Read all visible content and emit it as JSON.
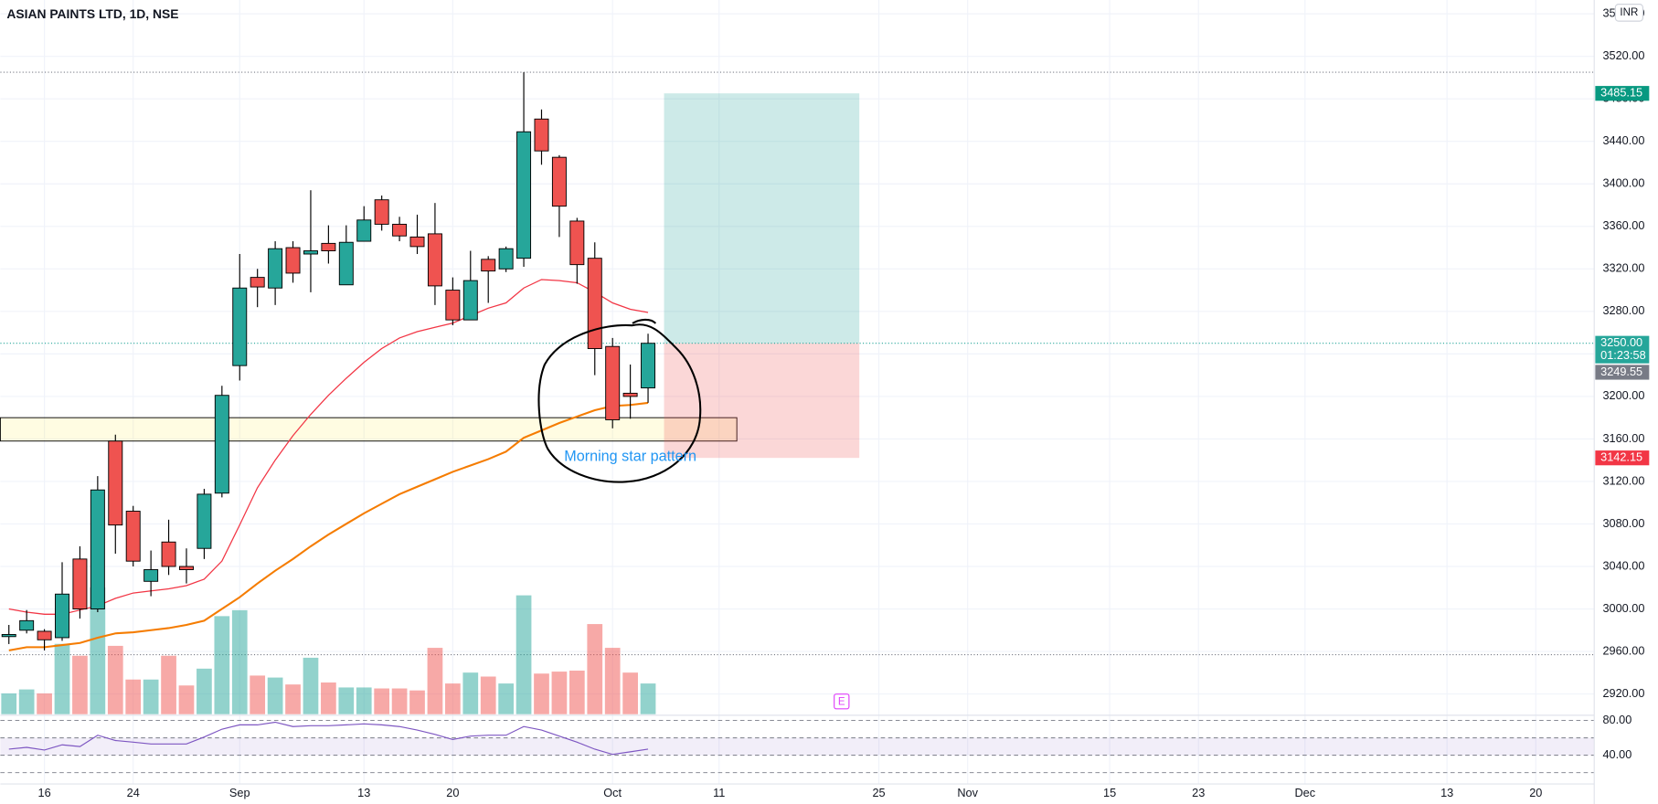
{
  "chart_data": {
    "type": "candlestick",
    "title": "ASIAN PAINTS LTD, 1D, NSE",
    "currency": "INR",
    "up_color": "#26a69a",
    "down_color": "#ef5350",
    "open": [
      2974,
      2980,
      2979,
      2973,
      3047,
      3000,
      3158,
      3092,
      3026,
      3063,
      3040,
      3057,
      3109,
      3229,
      3312,
      3302,
      3340,
      3334,
      3344,
      3305,
      3346,
      3385,
      3362,
      3350,
      3353,
      3300,
      3272,
      3329,
      3320,
      3330,
      3461,
      3425,
      3365,
      3330,
      3247,
      3203,
      3208
    ],
    "high": [
      2985,
      2999,
      2981,
      3044,
      3059,
      3125,
      3164,
      3097,
      3055,
      3084,
      3057,
      3113,
      3210,
      3334,
      3320,
      3346,
      3346,
      3394,
      3361,
      3361,
      3379,
      3389,
      3369,
      3371,
      3382,
      3312,
      3337,
      3332,
      3341,
      3505,
      3470,
      3427,
      3368,
      3345,
      3255,
      3230,
      3259
    ],
    "low": [
      2967,
      2977,
      2961,
      2970,
      2991,
      2997,
      3052,
      3040,
      3012,
      3032,
      3024,
      3047,
      3105,
      3215,
      3284,
      3286,
      3307,
      3298,
      3325,
      3305,
      3346,
      3356,
      3346,
      3334,
      3286,
      3267,
      3272,
      3288,
      3317,
      3322,
      3418,
      3350,
      3306,
      3220,
      3170,
      3179,
      3194
    ],
    "close": [
      2976,
      2989,
      2971,
      3014,
      3000,
      3112,
      3079,
      3045,
      3037,
      3040,
      3037,
      3108,
      3201,
      3302,
      3303,
      3339,
      3316,
      3337,
      3337,
      3345,
      3366,
      3362,
      3351,
      3341,
      3304,
      3272,
      3309,
      3318,
      3339,
      3449,
      3431,
      3379,
      3324,
      3245,
      3178,
      3200,
      3250
    ],
    "volume": [
      21,
      25,
      21,
      71,
      59,
      128,
      69,
      35,
      35,
      59,
      29,
      46,
      99,
      105,
      39,
      37,
      30,
      57,
      32,
      27,
      27,
      26,
      26,
      24,
      67,
      31,
      42,
      38,
      31,
      120,
      41,
      43,
      44,
      91,
      67,
      42,
      31
    ],
    "ma": [
      {
        "color": "#f23645",
        "values": [
          3000,
          2997,
          2995,
          2995,
          2999,
          3003,
          3010,
          3015,
          3017,
          3019,
          3022,
          3028,
          3045,
          3079,
          3114,
          3140,
          3163,
          3183,
          3201,
          3217,
          3232,
          3245,
          3255,
          3261,
          3265,
          3269,
          3276,
          3283,
          3288,
          3302,
          3310,
          3309,
          3307,
          3298,
          3288,
          3282,
          3279
        ]
      },
      {
        "color": "#f57c00",
        "values": [
          2961,
          2964,
          2964,
          2966,
          2968,
          2973,
          2977,
          2978,
          2980,
          2982,
          2985,
          2989,
          3000,
          3011,
          3024,
          3036,
          3047,
          3059,
          3070,
          3080,
          3090,
          3099,
          3108,
          3115,
          3122,
          3129,
          3135,
          3141,
          3148,
          3161,
          3168,
          3175,
          3181,
          3187,
          3191,
          3192,
          3194
        ]
      }
    ],
    "xlim": [
      -0.48,
      89.29
    ],
    "xticks": [
      {
        "value": 2,
        "label": "16"
      },
      {
        "value": 7,
        "label": "24"
      },
      {
        "value": 13,
        "label": "Sep"
      },
      {
        "value": 20,
        "label": "13"
      },
      {
        "value": 25,
        "label": "20"
      },
      {
        "value": 34,
        "label": "Oct"
      },
      {
        "value": 40,
        "label": "11"
      },
      {
        "value": 49,
        "label": "25"
      },
      {
        "value": 54,
        "label": "Nov"
      },
      {
        "value": 62,
        "label": "15"
      },
      {
        "value": 67,
        "label": "23"
      },
      {
        "value": 73,
        "label": "Dec"
      },
      {
        "value": 81,
        "label": "13"
      },
      {
        "value": 86,
        "label": "20"
      }
    ],
    "ylim": [
      2900,
      3573
    ],
    "yticks": [
      {
        "value": 2920,
        "label": "2920.00"
      },
      {
        "value": 2960,
        "label": "2960.00"
      },
      {
        "value": 3000,
        "label": "3000.00"
      },
      {
        "value": 3040,
        "label": "3040.00"
      },
      {
        "value": 3080,
        "label": "3080.00"
      },
      {
        "value": 3120,
        "label": "3120.00"
      },
      {
        "value": 3160,
        "label": "3160.00"
      },
      {
        "value": 3200,
        "label": "3200.00"
      },
      {
        "value": 3240,
        "label": "3240.00"
      },
      {
        "value": 3280,
        "label": "3280.00"
      },
      {
        "value": 3320,
        "label": "3320.00"
      },
      {
        "value": 3360,
        "label": "3360.00"
      },
      {
        "value": 3400,
        "label": "3400.00"
      },
      {
        "value": 3440,
        "label": "3440.00"
      },
      {
        "value": 3480,
        "label": "3480.00"
      },
      {
        "value": 3520,
        "label": "3520.00"
      },
      {
        "value": 3560,
        "label": "3560.00"
      }
    ],
    "grid": true,
    "dotted_lines": [
      3505,
      2957
    ],
    "zone": {
      "top": 3180,
      "bottom": 3158,
      "end": 41
    },
    "position": {
      "start": 36.9,
      "end": 47.9,
      "entry": {
        "value": 3250,
        "label": "3250.00"
      },
      "target": 3485.15,
      "stop": 3142.15
    },
    "countdown": "01:23:58",
    "last_price": 3249.55,
    "annotation": {
      "text": "Morning star pattern",
      "x": 35,
      "y": 3143
    },
    "earnings": {
      "label": "E",
      "x": 46.9,
      "y": 2913
    },
    "rsi": {
      "color": "#7e57c2",
      "ylim": [
        7,
        86
      ],
      "values": [
        47,
        49,
        46,
        52,
        50,
        63,
        57,
        55,
        53,
        53,
        53,
        61,
        70,
        75,
        75,
        78,
        73,
        74,
        74,
        75,
        76,
        75,
        73,
        69,
        64,
        58,
        62,
        63,
        63,
        73,
        69,
        62,
        55,
        47,
        41,
        44,
        47
      ],
      "levels": [
        80,
        60,
        40,
        20
      ],
      "band": [
        40,
        60
      ],
      "ticks": [
        {
          "value": 80,
          "label": "80.00"
        },
        {
          "value": 40,
          "label": "40.00"
        }
      ]
    }
  }
}
